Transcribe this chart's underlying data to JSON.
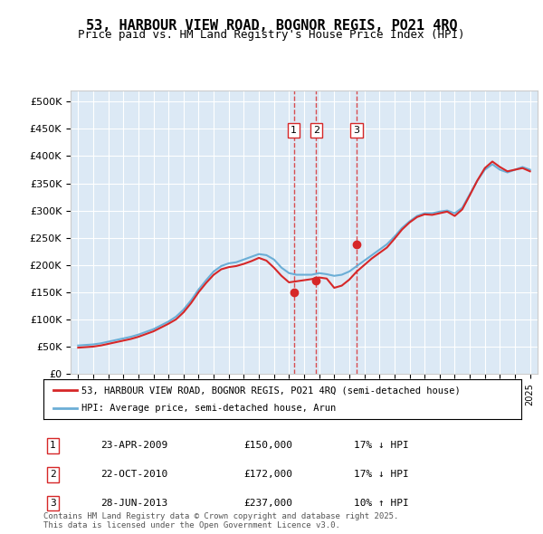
{
  "title": "53, HARBOUR VIEW ROAD, BOGNOR REGIS, PO21 4RQ",
  "subtitle": "Price paid vs. HM Land Registry's House Price Index (HPI)",
  "background_color": "#dce9f5",
  "plot_bg_color": "#dce9f5",
  "ylim": [
    0,
    520000
  ],
  "yticks": [
    0,
    50000,
    100000,
    150000,
    200000,
    250000,
    300000,
    350000,
    400000,
    450000,
    500000
  ],
  "ytick_labels": [
    "£0",
    "£50K",
    "£100K",
    "£150K",
    "£200K",
    "£250K",
    "£300K",
    "£350K",
    "£400K",
    "£450K",
    "£500K"
  ],
  "hpi_color": "#6baed6",
  "price_color": "#d62728",
  "transaction_color": "#d62728",
  "vline_color": "#d62728",
  "transactions": [
    {
      "id": 1,
      "date_num": 2009.31,
      "price": 150000,
      "label": "1",
      "date_str": "23-APR-2009",
      "pct": "17%",
      "dir": "↓",
      "vs": "HPI"
    },
    {
      "id": 2,
      "date_num": 2010.81,
      "price": 172000,
      "label": "2",
      "date_str": "22-OCT-2010",
      "pct": "17%",
      "dir": "↓",
      "vs": "HPI"
    },
    {
      "id": 3,
      "date_num": 2013.49,
      "price": 237000,
      "label": "3",
      "date_str": "28-JUN-2013",
      "pct": "10%",
      "dir": "↑",
      "vs": "HPI"
    }
  ],
  "legend_line1": "53, HARBOUR VIEW ROAD, BOGNOR REGIS, PO21 4RQ (semi-detached house)",
  "legend_line2": "HPI: Average price, semi-detached house, Arun",
  "footnote": "Contains HM Land Registry data © Crown copyright and database right 2025.\nThis data is licensed under the Open Government Licence v3.0.",
  "hpi_x": [
    1995,
    1995.5,
    1996,
    1996.5,
    1997,
    1997.5,
    1998,
    1998.5,
    1999,
    1999.5,
    2000,
    2000.5,
    2001,
    2001.5,
    2002,
    2002.5,
    2003,
    2003.5,
    2004,
    2004.5,
    2005,
    2005.5,
    2006,
    2006.5,
    2007,
    2007.5,
    2008,
    2008.5,
    2009,
    2009.5,
    2010,
    2010.5,
    2011,
    2011.5,
    2012,
    2012.5,
    2013,
    2013.5,
    2014,
    2014.5,
    2015,
    2015.5,
    2016,
    2016.5,
    2017,
    2017.5,
    2018,
    2018.5,
    2019,
    2019.5,
    2020,
    2020.5,
    2021,
    2021.5,
    2022,
    2022.5,
    2023,
    2023.5,
    2024,
    2024.5,
    2025
  ],
  "hpi_y": [
    52000,
    53000,
    54000,
    56000,
    59000,
    62000,
    65000,
    68000,
    72000,
    77000,
    82000,
    89000,
    96000,
    105000,
    118000,
    135000,
    155000,
    172000,
    188000,
    198000,
    203000,
    205000,
    210000,
    215000,
    220000,
    218000,
    210000,
    195000,
    185000,
    182000,
    182000,
    182000,
    185000,
    183000,
    180000,
    182000,
    188000,
    198000,
    208000,
    218000,
    228000,
    238000,
    252000,
    268000,
    280000,
    290000,
    295000,
    295000,
    298000,
    300000,
    295000,
    305000,
    330000,
    355000,
    375000,
    385000,
    375000,
    370000,
    375000,
    380000,
    375000
  ],
  "price_x": [
    1995,
    1995.5,
    1996,
    1996.5,
    1997,
    1997.5,
    1998,
    1998.5,
    1999,
    1999.5,
    2000,
    2000.5,
    2001,
    2001.5,
    2002,
    2002.5,
    2003,
    2003.5,
    2004,
    2004.5,
    2005,
    2005.5,
    2006,
    2006.5,
    2007,
    2007.5,
    2008,
    2008.5,
    2009,
    2009.5,
    2010,
    2010.5,
    2011,
    2011.5,
    2012,
    2012.5,
    2013,
    2013.5,
    2014,
    2014.5,
    2015,
    2015.5,
    2016,
    2016.5,
    2017,
    2017.5,
    2018,
    2018.5,
    2019,
    2019.5,
    2020,
    2020.5,
    2021,
    2021.5,
    2022,
    2022.5,
    2023,
    2023.5,
    2024,
    2024.5,
    2025
  ],
  "price_y": [
    48000,
    49000,
    50000,
    52000,
    55000,
    58000,
    61000,
    64000,
    68000,
    73000,
    78000,
    85000,
    92000,
    100000,
    113000,
    130000,
    150000,
    167000,
    182000,
    192000,
    196000,
    198000,
    202000,
    207000,
    213000,
    208000,
    195000,
    180000,
    168000,
    170000,
    172000,
    174000,
    177000,
    175000,
    158000,
    162000,
    173000,
    188000,
    200000,
    212000,
    222000,
    232000,
    248000,
    265000,
    278000,
    288000,
    293000,
    292000,
    295000,
    298000,
    290000,
    302000,
    328000,
    355000,
    378000,
    390000,
    380000,
    372000,
    375000,
    378000,
    372000
  ]
}
